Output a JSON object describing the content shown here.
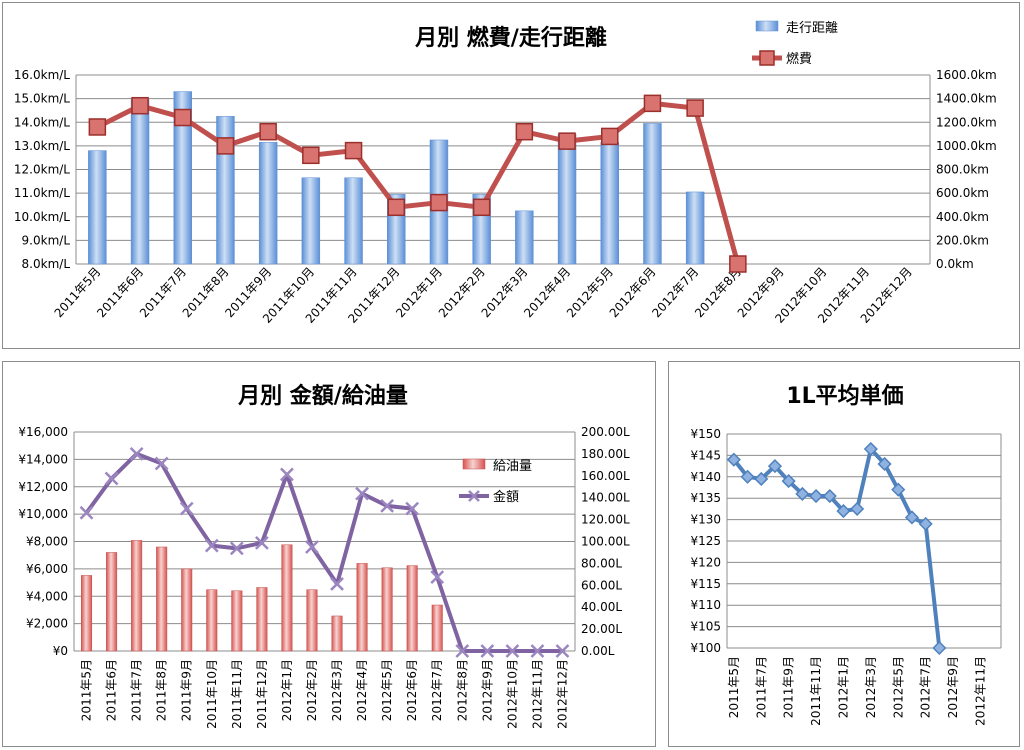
{
  "chart_data": [
    {
      "type": "bar",
      "title": "月別 燃費/走行距離",
      "categories": [
        "2011年5月",
        "2011年6月",
        "2011年7月",
        "2011年8月",
        "2011年9月",
        "2011年10月",
        "2011年11月",
        "2011年12月",
        "2012年1月",
        "2012年2月",
        "2012年3月",
        "2012年4月",
        "2012年5月",
        "2012年6月",
        "2012年7月",
        "2012年8月",
        "2012年9月",
        "2012年10月",
        "2012年11月",
        "2012年12月"
      ],
      "left_axis": {
        "ylim": [
          8,
          16
        ],
        "ticks": [
          "8.0km/L",
          "9.0km/L",
          "10.0km/L",
          "11.0km/L",
          "12.0km/L",
          "13.0km/L",
          "14.0km/L",
          "15.0km/L",
          "16.0km/L"
        ]
      },
      "right_axis": {
        "ylim": [
          0,
          1600
        ],
        "ticks": [
          "0.0km",
          "200.0km",
          "400.0km",
          "600.0km",
          "800.0km",
          "1000.0km",
          "1200.0km",
          "1400.0km",
          "1600.0km"
        ]
      },
      "series": [
        {
          "name": "走行距離",
          "kind": "bar",
          "axis": "right",
          "color": "#5b8fd6",
          "values": [
            960,
            1390,
            1460,
            1250,
            1030,
            730,
            730,
            590,
            1050,
            590,
            450,
            1100,
            1030,
            1190,
            610,
            null,
            null,
            null,
            null,
            null
          ]
        },
        {
          "name": "燃費",
          "kind": "line",
          "axis": "left",
          "color": "#c0504d",
          "values": [
            13.8,
            14.7,
            14.2,
            13.0,
            13.6,
            12.6,
            12.8,
            10.4,
            10.6,
            10.4,
            13.6,
            13.2,
            13.4,
            14.8,
            14.6,
            8.0,
            null,
            null,
            null,
            null
          ]
        }
      ],
      "legend": "top-right",
      "grid": true
    },
    {
      "type": "bar",
      "title": "月別 金額/給油量",
      "categories": [
        "2011年5月",
        "2011年6月",
        "2011年7月",
        "2011年8月",
        "2011年9月",
        "2011年10月",
        "2011年11月",
        "2011年12月",
        "2012年1月",
        "2012年2月",
        "2012年3月",
        "2012年4月",
        "2012年5月",
        "2012年6月",
        "2012年7月",
        "2012年8月",
        "2012年9月",
        "2012年10月",
        "2012年11月",
        "2012年12月"
      ],
      "left_axis": {
        "ylim": [
          0,
          16000
        ],
        "ticks": [
          "¥0",
          "¥2,000",
          "¥4,000",
          "¥6,000",
          "¥8,000",
          "¥10,000",
          "¥12,000",
          "¥14,000",
          "¥16,000"
        ]
      },
      "right_axis": {
        "ylim": [
          0,
          200
        ],
        "ticks": [
          "0.00L",
          "20.00L",
          "40.00L",
          "60.00L",
          "80.00L",
          "100.00L",
          "120.00L",
          "140.00L",
          "160.00L",
          "180.00L",
          "200.00L"
        ]
      },
      "series": [
        {
          "name": "給油量",
          "kind": "bar",
          "axis": "right",
          "color": "#c0504d",
          "values": [
            69,
            90,
            101,
            95,
            75,
            56,
            55,
            58,
            97,
            56,
            32,
            80,
            76,
            78,
            42,
            null,
            null,
            null,
            null,
            null
          ]
        },
        {
          "name": "金額",
          "kind": "line",
          "axis": "left",
          "color": "#8064a2",
          "values": [
            10100,
            12600,
            14400,
            13700,
            10400,
            7700,
            7500,
            7900,
            12900,
            7600,
            4900,
            11500,
            10600,
            10400,
            5400,
            0,
            0,
            0,
            0,
            0
          ]
        }
      ],
      "legend": "right",
      "grid": true
    },
    {
      "type": "line",
      "title": "1L平均単価",
      "categories": [
        "2011年5月",
        "2011年6月",
        "2011年7月",
        "2011年8月",
        "2011年9月",
        "2011年10月",
        "2011年11月",
        "2011年12月",
        "2012年1月",
        "2012年2月",
        "2012年3月",
        "2012年4月",
        "2012年5月",
        "2012年6月",
        "2012年7月",
        "2012年8月",
        "2012年9月",
        "2012年10月",
        "2012年11月",
        "2012年12月"
      ],
      "tick_labels": [
        "2011年5月",
        "2011年7月",
        "2011年9月",
        "2011年11月",
        "2012年1月",
        "2012年3月",
        "2012年5月",
        "2012年7月",
        "2012年9月",
        "2012年11月"
      ],
      "left_axis": {
        "ylim": [
          100,
          150
        ],
        "ticks": [
          "¥100",
          "¥105",
          "¥110",
          "¥115",
          "¥120",
          "¥125",
          "¥130",
          "¥135",
          "¥140",
          "¥145",
          "¥150"
        ]
      },
      "series": [
        {
          "name": "",
          "kind": "line",
          "axis": "left",
          "color": "#4f81bd",
          "values": [
            144,
            140,
            139.5,
            142.5,
            139,
            136,
            135.5,
            135.5,
            132,
            132.5,
            146.5,
            143,
            137,
            130.5,
            129,
            100,
            null,
            null,
            null,
            null
          ]
        }
      ],
      "grid": true
    }
  ]
}
